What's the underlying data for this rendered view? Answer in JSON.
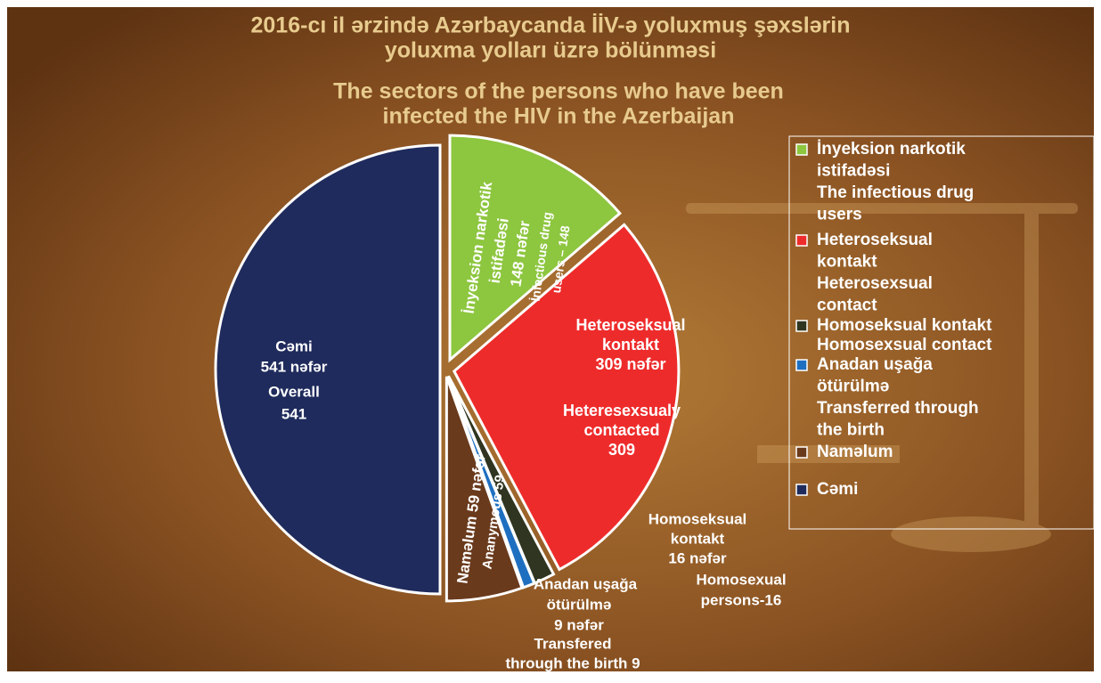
{
  "chart_data": {
    "type": "pie",
    "title": [
      "2016-cı il ərzində Azərbaycanda İİV-ə yoluxmuş şəxslərin",
      "yoluxma yolları üzrə bölünməsi"
    ],
    "subtitle": [
      "The sectors of the persons who have been",
      "infected the HIV in the Azerbaijan"
    ],
    "slices": [
      {
        "value": 148,
        "color": "#8dc63f",
        "legend": [
          "İnyeksion narkotik",
          "istifadəsi",
          "The infectious drug",
          "users"
        ],
        "labels": [
          "İnyeksion narkotik",
          "istifadəsi",
          "148 nəfər",
          "İnfectious drug",
          "users – 148"
        ]
      },
      {
        "value": 309,
        "color": "#ee2b2b",
        "legend": [
          "Heteroseksual",
          "kontakt",
          "Heterosexsual",
          "contact"
        ],
        "labels": [
          "Heteroseksual",
          "kontakt",
          "309 nəfər",
          "Heteresexsualy",
          "contacted",
          "309"
        ]
      },
      {
        "value": 16,
        "color": "#2f3520",
        "legend": [
          "Homoseksual kontakt",
          "Homosexsual contact"
        ],
        "labels": [
          "Homoseksual",
          "kontakt",
          "16 nəfər",
          "Homosexual",
          "persons-16"
        ]
      },
      {
        "value": 9,
        "color": "#1f6fc0",
        "legend": [
          "Anadan uşağa",
          "ötürülmə",
          "Transferred through",
          "the birth"
        ],
        "labels": [
          "Anadan uşağa",
          "ötürülmə",
          "9 nəfər",
          "Transfered",
          "through the birth 9"
        ]
      },
      {
        "value": 59,
        "color": "#6a3a1c",
        "legend": [
          "Naməlum"
        ],
        "labels": [
          "Naməlum 59 nəfər",
          "Ananymous 59"
        ]
      },
      {
        "value": 541,
        "color": "#1f2b5c",
        "legend": [
          "Cəmi"
        ],
        "labels": [
          "Cəmi",
          "541 nəfər",
          "Overall",
          "541"
        ]
      }
    ]
  }
}
